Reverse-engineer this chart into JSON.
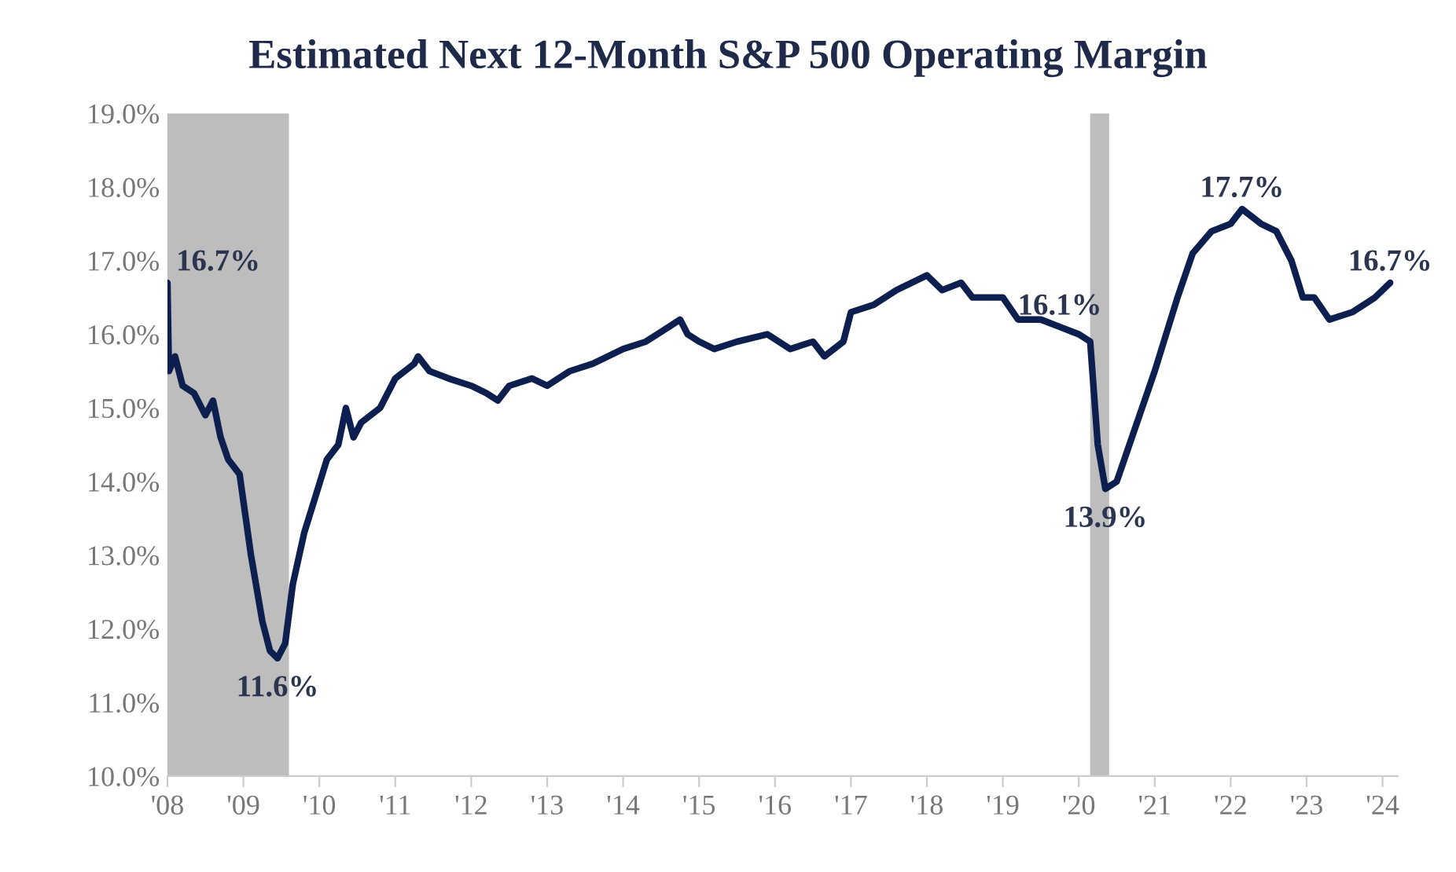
{
  "chart_data": {
    "type": "line",
    "title": "Estimated Next 12-Month S&P 500 Operating Margin",
    "x": [
      2008.0,
      2008.02,
      2008.1,
      2008.2,
      2008.35,
      2008.5,
      2008.6,
      2008.7,
      2008.8,
      2008.95,
      2009.1,
      2009.25,
      2009.35,
      2009.45,
      2009.55,
      2009.65,
      2009.8,
      2009.95,
      2010.1,
      2010.25,
      2010.35,
      2010.45,
      2010.55,
      2010.8,
      2011.0,
      2011.25,
      2011.3,
      2011.45,
      2011.7,
      2012.0,
      2012.2,
      2012.35,
      2012.5,
      2012.8,
      2013.0,
      2013.3,
      2013.6,
      2014.0,
      2014.3,
      2014.6,
      2014.75,
      2014.85,
      2015.0,
      2015.2,
      2015.5,
      2015.9,
      2016.2,
      2016.5,
      2016.65,
      2016.9,
      2017.0,
      2017.3,
      2017.6,
      2018.0,
      2018.2,
      2018.45,
      2018.6,
      2019.0,
      2019.2,
      2019.5,
      2019.75,
      2020.0,
      2020.15,
      2020.25,
      2020.35,
      2020.5,
      2020.7,
      2021.0,
      2021.3,
      2021.5,
      2021.75,
      2022.0,
      2022.15,
      2022.4,
      2022.6,
      2022.8,
      2022.95,
      2023.1,
      2023.3,
      2023.6,
      2023.9,
      2024.1
    ],
    "series": [
      {
        "color": "#0d1f4f",
        "values": [
          16.7,
          15.5,
          15.7,
          15.3,
          15.2,
          14.9,
          15.1,
          14.6,
          14.3,
          14.1,
          13.0,
          12.1,
          11.7,
          11.6,
          11.8,
          12.6,
          13.3,
          13.8,
          14.3,
          14.5,
          15.0,
          14.6,
          14.8,
          15.0,
          15.4,
          15.6,
          15.7,
          15.5,
          15.4,
          15.3,
          15.2,
          15.1,
          15.3,
          15.4,
          15.3,
          15.5,
          15.6,
          15.8,
          15.9,
          16.1,
          16.2,
          16.0,
          15.9,
          15.8,
          15.9,
          16.0,
          15.8,
          15.9,
          15.7,
          15.9,
          16.3,
          16.4,
          16.6,
          16.8,
          16.6,
          16.7,
          16.5,
          16.5,
          16.2,
          16.2,
          16.1,
          16.0,
          15.9,
          14.5,
          13.9,
          14.0,
          14.6,
          15.5,
          16.5,
          17.1,
          17.4,
          17.5,
          17.7,
          17.5,
          17.4,
          17.0,
          16.5,
          16.5,
          16.2,
          16.3,
          16.5,
          16.7
        ]
      }
    ],
    "xlim": [
      2008,
      2024.2
    ],
    "xticks": [
      {
        "value": 2008,
        "label": "'08"
      },
      {
        "value": 2009,
        "label": "'09"
      },
      {
        "value": 2010,
        "label": "'10"
      },
      {
        "value": 2011,
        "label": "'11"
      },
      {
        "value": 2012,
        "label": "'12"
      },
      {
        "value": 2013,
        "label": "'13"
      },
      {
        "value": 2014,
        "label": "'14"
      },
      {
        "value": 2015,
        "label": "'15"
      },
      {
        "value": 2016,
        "label": "'16"
      },
      {
        "value": 2017,
        "label": "'17"
      },
      {
        "value": 2018,
        "label": "'18"
      },
      {
        "value": 2019,
        "label": "'19"
      },
      {
        "value": 2020,
        "label": "'20"
      },
      {
        "value": 2021,
        "label": "'21"
      },
      {
        "value": 2022,
        "label": "'22"
      },
      {
        "value": 2023,
        "label": "'23"
      },
      {
        "value": 2024,
        "label": "'24"
      }
    ],
    "ylim": [
      10,
      19
    ],
    "yticks": [
      {
        "value": 10,
        "label": "10.0%"
      },
      {
        "value": 11,
        "label": "11.0%"
      },
      {
        "value": 12,
        "label": "12.0%"
      },
      {
        "value": 13,
        "label": "13.0%"
      },
      {
        "value": 14,
        "label": "14.0%"
      },
      {
        "value": 15,
        "label": "15.0%"
      },
      {
        "value": 16,
        "label": "16.0%"
      },
      {
        "value": 17,
        "label": "17.0%"
      },
      {
        "value": 18,
        "label": "18.0%"
      },
      {
        "value": 19,
        "label": "19.0%"
      }
    ],
    "bands": [
      {
        "axis": "x",
        "from": 2008.0,
        "to": 2009.6,
        "color": "#bdbdbd"
      },
      {
        "axis": "x",
        "from": 2020.15,
        "to": 2020.4,
        "color": "#bdbdbd"
      }
    ],
    "annotations": [
      {
        "text": "16.7%",
        "x": 2008.0,
        "y": 16.7
      },
      {
        "text": "11.6%",
        "x": 2009.45,
        "y": 11.6
      },
      {
        "text": "16.1%",
        "x": 2019.75,
        "y": 16.1
      },
      {
        "text": "13.9%",
        "x": 2020.35,
        "y": 13.9
      },
      {
        "text": "17.7%",
        "x": 2022.15,
        "y": 17.7
      },
      {
        "text": "16.7%",
        "x": 2024.1,
        "y": 16.7
      }
    ],
    "grid": false,
    "legend": false,
    "marker": "none",
    "line_style": "solid"
  }
}
